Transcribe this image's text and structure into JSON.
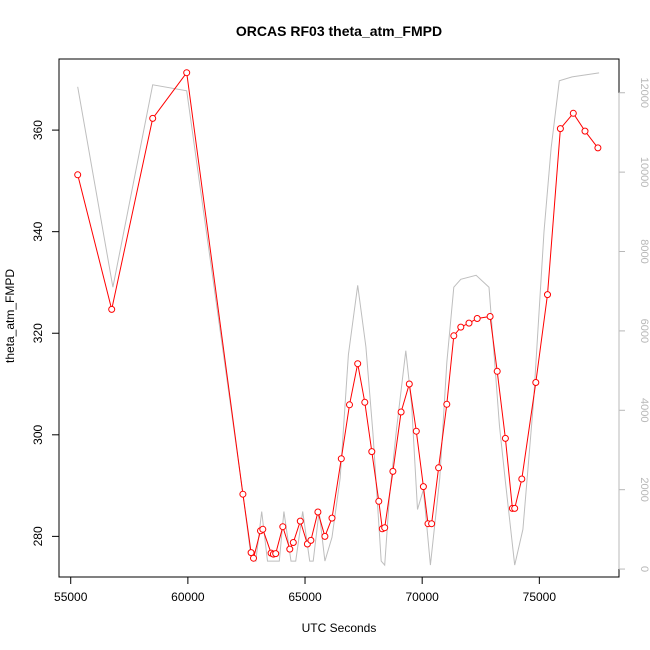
{
  "chart_data": {
    "type": "line",
    "title": "ORCAS RF03 theta_atm_FMPD",
    "xlabel": "UTC Seconds",
    "ylabel": "theta_atm_FMPD",
    "y2label": "",
    "xlim": [
      54500,
      78400
    ],
    "ylim": [
      272,
      374
    ],
    "y2lim": [
      -200,
      12850
    ],
    "xticks": [
      55000,
      60000,
      65000,
      70000,
      75000
    ],
    "yticks": [
      280,
      300,
      320,
      340,
      360
    ],
    "y2ticks": [
      0,
      2000,
      4000,
      6000,
      8000,
      10000,
      12000
    ],
    "grid": false,
    "colors": {
      "primary": "#ff0000",
      "secondary": "#bebebe",
      "axis": "#000000",
      "secondary_axis": "#b8b8b8"
    },
    "series": [
      {
        "role": "primary",
        "marker": "open-circle",
        "x": [
          55300,
          56750,
          58500,
          59950,
          62350,
          62700,
          62800,
          63100,
          63200,
          63550,
          63650,
          63750,
          64050,
          64350,
          64500,
          64800,
          65100,
          65250,
          65550,
          65850,
          66150,
          66550,
          66900,
          67250,
          67550,
          67850,
          68150,
          68300,
          68400,
          68750,
          69100,
          69450,
          69750,
          70050,
          70250,
          70400,
          70700,
          71050,
          71350,
          71650,
          72000,
          72350,
          72900,
          73200,
          73550,
          73850,
          73950,
          74250,
          74850,
          75350,
          75900,
          76450,
          76950,
          77500
        ],
        "y": [
          351.2,
          324.7,
          362.3,
          371.3,
          288.3,
          276.8,
          275.7,
          281.1,
          281.4,
          276.7,
          276.5,
          276.6,
          281.9,
          277.5,
          278.8,
          283.0,
          278.5,
          279.2,
          284.8,
          280.0,
          283.6,
          295.3,
          305.9,
          314.0,
          306.4,
          296.7,
          286.9,
          281.5,
          281.7,
          292.8,
          304.5,
          310.0,
          300.7,
          289.8,
          282.5,
          282.5,
          293.5,
          306.0,
          319.5,
          321.2,
          322.0,
          322.9,
          323.3,
          312.5,
          299.3,
          285.5,
          285.5,
          291.3,
          310.3,
          327.6,
          360.3,
          363.3,
          359.8,
          356.5
        ]
      },
      {
        "role": "secondary",
        "x": [
          55300,
          56800,
          58500,
          59950,
          62350,
          62700,
          62900,
          63150,
          63400,
          63700,
          63900,
          64100,
          64400,
          64600,
          64900,
          65200,
          65350,
          65600,
          65850,
          66150,
          66500,
          66850,
          67250,
          67600,
          67900,
          68250,
          68400,
          68600,
          68900,
          69300,
          69550,
          69800,
          70050,
          70350,
          70750,
          71050,
          71350,
          71650,
          72300,
          72850,
          73300,
          73550,
          73950,
          74300,
          74750,
          75200,
          75500,
          75850,
          76400,
          77550
        ],
        "y": [
          12150,
          7100,
          12200,
          12050,
          1900,
          300,
          200,
          1450,
          200,
          200,
          200,
          1450,
          200,
          200,
          1450,
          200,
          200,
          1450,
          200,
          800,
          2300,
          5400,
          7150,
          5600,
          3400,
          200,
          100,
          1800,
          3500,
          5500,
          4150,
          1500,
          2000,
          100,
          2300,
          5200,
          7100,
          7300,
          7400,
          7100,
          3600,
          2200,
          100,
          1000,
          4200,
          8500,
          10600,
          12300,
          12400,
          12500
        ]
      }
    ]
  }
}
